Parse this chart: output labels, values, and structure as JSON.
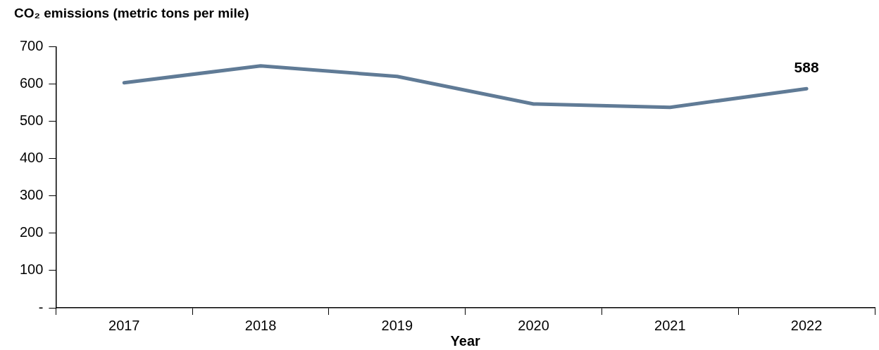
{
  "chart_data": {
    "type": "line",
    "title": "CO₂ emissions (metric tons per mile)",
    "xlabel": "Year",
    "categories": [
      "2017",
      "2018",
      "2019",
      "2020",
      "2021",
      "2022"
    ],
    "series": [
      {
        "color": "#607b96",
        "values": [
          604,
          649,
          621,
          547,
          538,
          588
        ],
        "value_labels": [
          null,
          null,
          null,
          null,
          null,
          "588"
        ]
      }
    ],
    "ylim": [
      0,
      700
    ],
    "yticks": [
      {
        "value": 0,
        "label": "-"
      },
      100,
      200,
      300,
      400,
      500,
      600,
      700
    ],
    "grid": false,
    "legend": false,
    "marker": "none",
    "line_style": "solid"
  }
}
